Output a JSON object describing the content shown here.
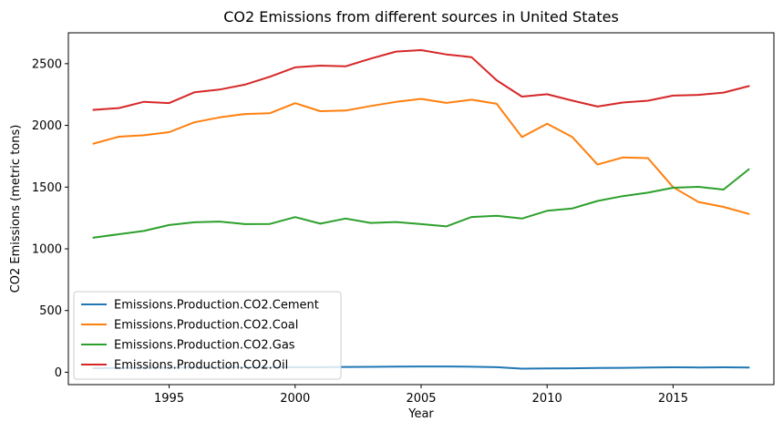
{
  "chart_data": {
    "type": "line",
    "title": "CO2 Emissions from different sources in United States",
    "xlabel": "Year",
    "ylabel": "CO2 Emissions (metric tons)",
    "xlim": [
      1991,
      2019
    ],
    "ylim": [
      -100,
      2750
    ],
    "x_ticks": [
      1995,
      2000,
      2005,
      2010,
      2015
    ],
    "y_ticks": [
      0,
      500,
      1000,
      1500,
      2000,
      2500
    ],
    "grid": false,
    "legend_position": "lower-left",
    "x": [
      1992,
      1993,
      1994,
      1995,
      1996,
      1997,
      1998,
      1999,
      2000,
      2001,
      2002,
      2003,
      2004,
      2005,
      2006,
      2007,
      2008,
      2009,
      2010,
      2011,
      2012,
      2013,
      2014,
      2015,
      2016,
      2017,
      2018
    ],
    "series": [
      {
        "name": "Emissions.Production.CO2.Cement",
        "color": "#1f77b4",
        "values": [
          33,
          35,
          36,
          37,
          38,
          39,
          40,
          40,
          41,
          41,
          43,
          44,
          46,
          47,
          47,
          45,
          41,
          29,
          31,
          32,
          35,
          36,
          39,
          40,
          39,
          40,
          39
        ]
      },
      {
        "name": "Emissions.Production.CO2.Coal",
        "color": "#ff7f0e",
        "values": [
          1852,
          1908,
          1920,
          1945,
          2025,
          2065,
          2092,
          2099,
          2180,
          2115,
          2120,
          2157,
          2190,
          2215,
          2182,
          2208,
          2175,
          1905,
          2013,
          1905,
          1682,
          1740,
          1735,
          1500,
          1380,
          1340,
          1283
        ]
      },
      {
        "name": "Emissions.Production.CO2.Gas",
        "color": "#2ca02c",
        "values": [
          1090,
          1118,
          1145,
          1193,
          1215,
          1221,
          1200,
          1202,
          1257,
          1204,
          1245,
          1210,
          1217,
          1200,
          1182,
          1258,
          1268,
          1245,
          1308,
          1327,
          1388,
          1427,
          1455,
          1495,
          1502,
          1480,
          1643
        ]
      },
      {
        "name": "Emissions.Production.CO2.Oil",
        "color": "#d62728",
        "values": [
          2126,
          2140,
          2191,
          2181,
          2268,
          2290,
          2330,
          2394,
          2470,
          2484,
          2478,
          2541,
          2598,
          2610,
          2575,
          2553,
          2365,
          2233,
          2252,
          2201,
          2153,
          2185,
          2200,
          2241,
          2247,
          2266,
          2318
        ]
      }
    ]
  }
}
